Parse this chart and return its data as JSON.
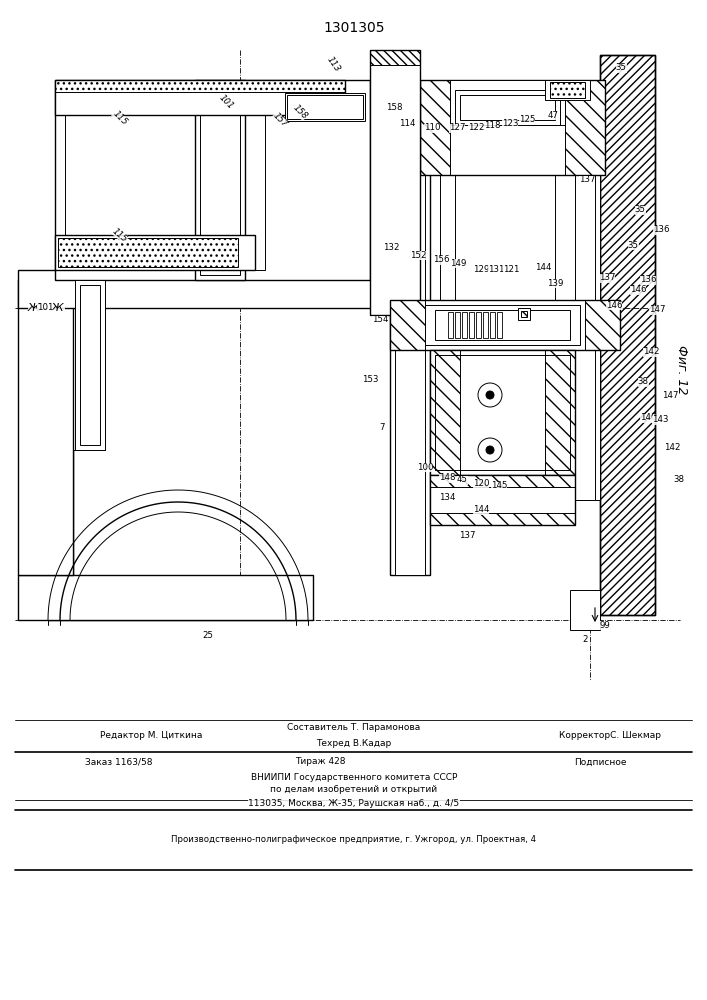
{
  "patent_number": "1301305",
  "figure_label": "Фиг. 12",
  "bg_color": "#ffffff",
  "footer": {
    "l1_left": "Редактор М. Циткина",
    "l1_ctop": "Составитель Т. Парамонова",
    "l1_cbot": "Техред В.Кадар",
    "l1_right": "КорректорС. Шекмар",
    "l2_left": "Заказ 1163/58",
    "l2_cen": "Тираж 428",
    "l2_right": "Подписное",
    "l3": "ВНИИПИ Государственного комитета СССР",
    "l4": "по делам изобретений и открытий",
    "l5": "113035, Москва, Ж-35, Раушская наб., д. 4/5",
    "l6": "Производственно-полиграфическое предприятие, г. Ужгород, ул. Проектная, 4"
  }
}
